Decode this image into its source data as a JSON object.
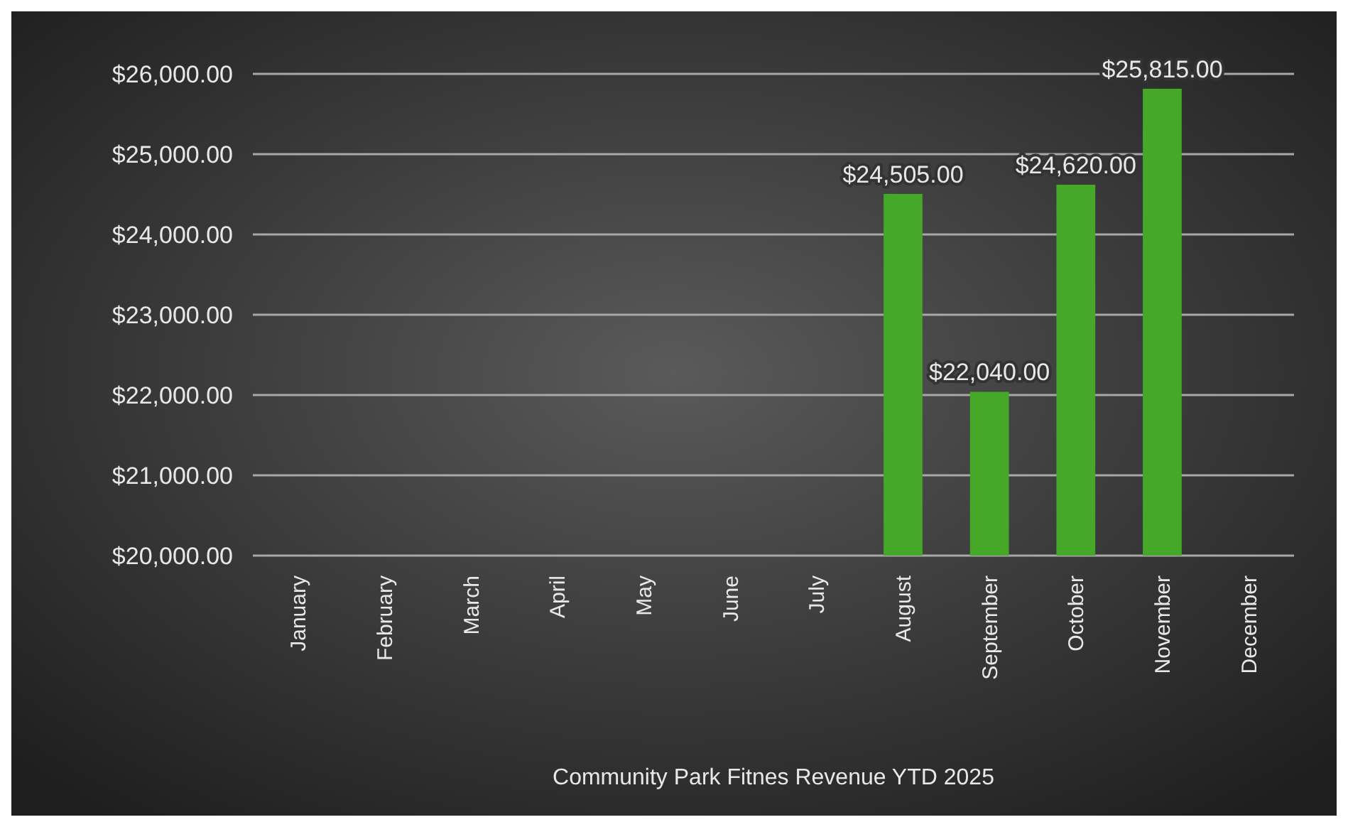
{
  "chart_data": {
    "type": "bar",
    "title": "Community Park Fitnes Revenue YTD 2025",
    "categories": [
      "January",
      "February",
      "March",
      "April",
      "May",
      "June",
      "July",
      "August",
      "September",
      "October",
      "November",
      "December"
    ],
    "values": [
      null,
      null,
      null,
      null,
      null,
      null,
      null,
      24505,
      22040,
      24620,
      25815,
      null
    ],
    "value_labels": [
      null,
      null,
      null,
      null,
      null,
      null,
      null,
      "$24,505.00",
      "$22,040.00",
      "$24,620.00",
      "$25,815.00",
      null
    ],
    "color": "#45a829",
    "ylim": [
      20000,
      26000
    ],
    "yticks": [
      {
        "value": 20000,
        "label": "$20,000.00"
      },
      {
        "value": 21000,
        "label": "$21,000.00"
      },
      {
        "value": 22000,
        "label": "$22,000.00"
      },
      {
        "value": 23000,
        "label": "$23,000.00"
      },
      {
        "value": 24000,
        "label": "$24,000.00"
      },
      {
        "value": 25000,
        "label": "$25,000.00"
      },
      {
        "value": 26000,
        "label": "$26,000.00"
      }
    ],
    "grid": "y"
  }
}
